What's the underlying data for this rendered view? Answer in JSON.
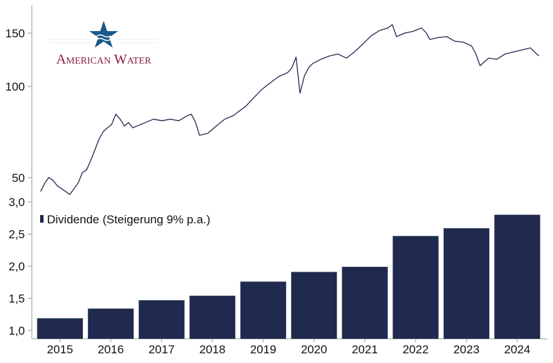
{
  "colors": {
    "price_line": "#1f2a4e",
    "bar": "#1f2a4e",
    "axis": "#9a9a9a",
    "brand_red": "#8c1d3f",
    "brand_blue": "#1a5a8a"
  },
  "logo": {
    "text": "American Water",
    "icon": "star-wave-logo-icon"
  },
  "chart_data": [
    {
      "type": "line",
      "title": "",
      "xlabel": "",
      "ylabel": "",
      "yscale": "log",
      "ylim": [
        42,
        185
      ],
      "yticks": [
        50,
        100,
        150
      ],
      "ytick_labels": [
        "50",
        "100",
        "150"
      ],
      "x_range": [
        "2015-01",
        "2024-12"
      ],
      "grid": false,
      "series": [
        {
          "x": [
            "2015-01",
            "2015-02",
            "2015-03",
            "2015-04",
            "2015-05",
            "2015-06",
            "2015-08",
            "2015-09",
            "2015-10",
            "2015-11",
            "2015-12",
            "2016-01",
            "2016-02",
            "2016-03",
            "2016-04",
            "2016-05",
            "2016-06",
            "2016-07",
            "2016-08",
            "2016-09",
            "2016-10",
            "2016-11",
            "2016-12",
            "2017-02",
            "2017-04",
            "2017-06",
            "2017-08",
            "2017-10",
            "2017-12",
            "2018-01",
            "2018-02",
            "2018-03",
            "2018-05",
            "2018-07",
            "2018-09",
            "2018-11",
            "2018-12",
            "2019-02",
            "2019-04",
            "2019-06",
            "2019-08",
            "2019-10",
            "2019-12",
            "2020-01",
            "2020-02",
            "2020-03",
            "2020-04",
            "2020-05",
            "2020-06",
            "2020-08",
            "2020-10",
            "2020-12",
            "2021-02",
            "2021-04",
            "2021-06",
            "2021-08",
            "2021-10",
            "2021-12",
            "2022-01",
            "2022-02",
            "2022-04",
            "2022-06",
            "2022-08",
            "2022-09",
            "2022-10",
            "2022-12",
            "2023-02",
            "2023-04",
            "2023-06",
            "2023-08",
            "2023-09",
            "2023-10",
            "2023-12",
            "2024-02",
            "2024-04",
            "2024-06",
            "2024-08",
            "2024-10",
            "2024-12"
          ],
          "y": [
            45,
            48,
            50,
            49,
            47,
            46,
            44,
            46,
            48,
            52,
            53,
            57,
            62,
            67,
            71,
            73,
            75,
            81,
            78,
            74,
            76,
            73,
            74,
            76,
            78,
            77,
            78,
            77,
            80,
            81,
            76,
            69,
            70,
            74,
            78,
            80,
            82,
            86,
            92,
            98,
            103,
            108,
            111,
            115,
            125,
            95,
            108,
            115,
            119,
            123,
            126,
            128,
            124,
            130,
            138,
            147,
            153,
            156,
            160,
            146,
            150,
            152,
            156,
            151,
            143,
            145,
            146,
            141,
            140,
            136,
            128,
            117,
            124,
            123,
            128,
            130,
            132,
            134,
            126
          ]
        }
      ]
    },
    {
      "type": "bar",
      "title": "",
      "xlabel": "",
      "ylabel": "",
      "categories": [
        "2015",
        "2016",
        "2017",
        "2018",
        "2019",
        "2020",
        "2021",
        "2022",
        "2023",
        "2024"
      ],
      "series": [
        {
          "name": "Dividende (Steigerung 9% p.a.)",
          "values": [
            1.19,
            1.34,
            1.47,
            1.54,
            1.76,
            1.91,
            1.99,
            2.47,
            2.59,
            2.8
          ]
        }
      ],
      "ylim": [
        0.87,
        3.0
      ],
      "yticks": [
        1.0,
        1.5,
        2.0,
        2.5,
        3.0
      ],
      "ytick_labels": [
        "1,0",
        "1,5",
        "2,0",
        "2,5",
        "3,0"
      ],
      "legend_position": "top-left",
      "grid": false
    }
  ]
}
